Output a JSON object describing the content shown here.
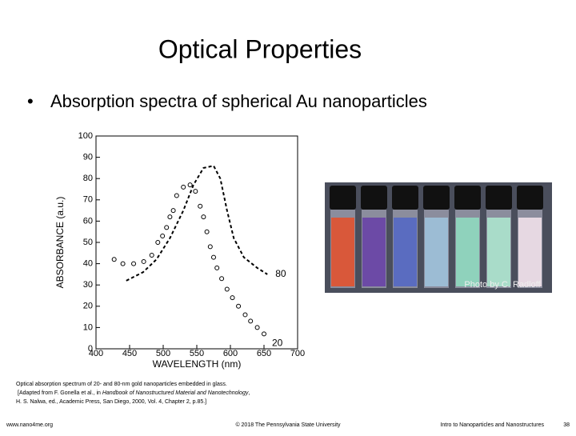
{
  "slide": {
    "title": "Optical Properties",
    "bullet": "Absorption spectra of spherical Au nanoparticles",
    "photo_credit": "Photo by C. Radloff",
    "caption": {
      "line1": "Optical absorption spectrum of 20- and 80-nm gold nanoparticles embedded in glass.",
      "line2_pre": "[Adapted from F. Gonella et al., in ",
      "line2_italic": "Handbook of Nanostructured Material and Nanotechnology",
      "line2_post": ",",
      "line3": "H. S. Nalwa, ed., Academic Press, San Diego, 2000, Vol. 4, Chapter 2, p.85.]"
    },
    "footer": {
      "left": "www.nano4me.org",
      "center": "© 2018 The Pennsylvania State University",
      "right": "Intro to Nanoparticles and Nanostructures",
      "page": "38"
    }
  },
  "chart_data": {
    "type": "line",
    "xlabel": "WAVELENGTH (nm)",
    "ylabel": "ABSORBANCE (a.u.)",
    "xlim": [
      400,
      700
    ],
    "xticks": [
      400,
      450,
      500,
      550,
      600,
      650,
      700
    ],
    "ylim": [
      0,
      100
    ],
    "yticks": [
      0,
      10,
      20,
      30,
      40,
      50,
      60,
      70,
      80,
      90,
      100
    ],
    "series": [
      {
        "name": "80",
        "style": "dashed",
        "color": "#000000",
        "x": [
          445,
          470,
          490,
          510,
          530,
          545,
          560,
          575,
          585,
          595,
          605,
          620,
          640,
          655
        ],
        "values": [
          32,
          36,
          42,
          52,
          65,
          77,
          85,
          86,
          80,
          65,
          52,
          43,
          38,
          35
        ]
      },
      {
        "name": "20",
        "style": "circles",
        "color": "#000000",
        "x": [
          427,
          440,
          456,
          471,
          483,
          492,
          499,
          505,
          510,
          515,
          520,
          530,
          540,
          548,
          555,
          560,
          565,
          570,
          575,
          580,
          587,
          595,
          603,
          612,
          622,
          630,
          640,
          650
        ],
        "values": [
          42,
          40,
          40,
          41,
          44,
          50,
          53,
          57,
          62,
          65,
          72,
          76,
          77,
          74,
          67,
          62,
          55,
          48,
          43,
          38,
          33,
          28,
          24,
          20,
          16,
          13,
          10,
          7
        ]
      }
    ]
  }
}
